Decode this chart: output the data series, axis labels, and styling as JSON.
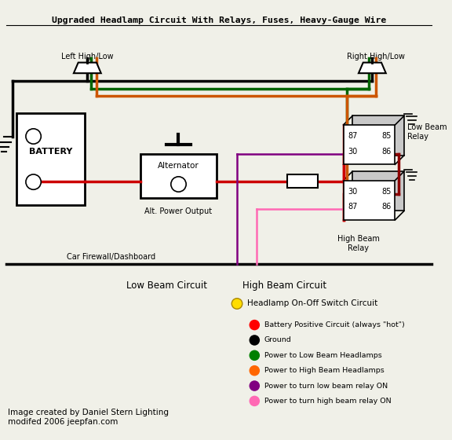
{
  "title": "Upgraded Headlamp Circuit With Relays, Fuses, Heavy-Gauge Wire",
  "bg_color": "#f0f0e8",
  "legend_items": [
    {
      "color": "#ff0000",
      "label": "Battery Positive Circuit (always \"hot\")"
    },
    {
      "color": "#000000",
      "label": "Ground"
    },
    {
      "color": "#008000",
      "label": "Power to Low Beam Headlamps"
    },
    {
      "color": "#ff6600",
      "label": "Power to High Beam Headlamps"
    },
    {
      "color": "#800080",
      "label": "Power to turn low beam relay ON"
    },
    {
      "color": "#ff69b4",
      "label": "Power to turn high beam relay ON"
    }
  ],
  "footer": "Image created by Daniel Stern Lighting\nmodifed 2006 jeepfan.com"
}
